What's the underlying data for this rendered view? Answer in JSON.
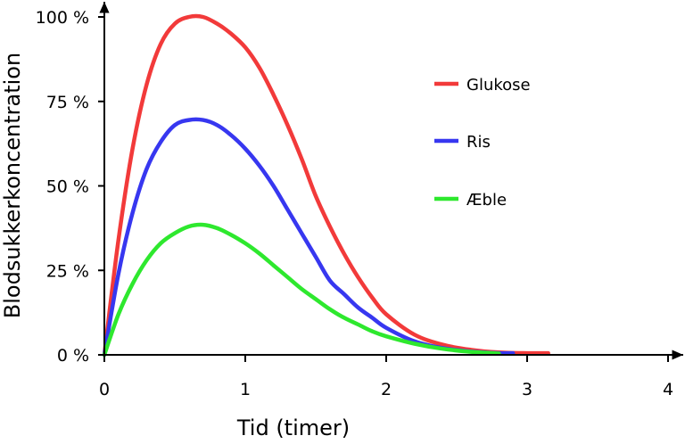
{
  "chart_data": {
    "type": "line",
    "xlabel": "Tid (timer)",
    "ylabel": "Blodsukkerkoncentration",
    "xlim": [
      0,
      4
    ],
    "ylim": [
      0,
      100
    ],
    "x_ticks": [
      "0",
      "1",
      "2",
      "3",
      "4"
    ],
    "y_ticks": [
      "0 %",
      "25 %",
      "50 %",
      "75 %",
      "100 %"
    ],
    "legend_position": "top-right",
    "series": [
      {
        "name": "Glukose",
        "color": "#f23a3a",
        "x": [
          0,
          0.1,
          0.2,
          0.3,
          0.4,
          0.5,
          0.6,
          0.7,
          0.8,
          0.9,
          1.0,
          1.1,
          1.2,
          1.3,
          1.4,
          1.5,
          1.6,
          1.7,
          1.8,
          1.9,
          2.0,
          2.2,
          2.4,
          2.6,
          2.8,
          3.0,
          3.15
        ],
        "values": [
          0,
          34,
          61,
          80,
          92,
          98,
          100,
          100,
          98,
          95,
          91,
          85,
          77,
          68,
          58,
          47,
          38,
          30,
          23,
          17,
          12,
          6,
          3,
          1.5,
          0.7,
          0.5,
          0.5
        ]
      },
      {
        "name": "Ris",
        "color": "#3737f0",
        "x": [
          0,
          0.1,
          0.2,
          0.3,
          0.4,
          0.5,
          0.6,
          0.7,
          0.8,
          0.9,
          1.0,
          1.1,
          1.2,
          1.3,
          1.4,
          1.5,
          1.6,
          1.7,
          1.8,
          1.9,
          2.0,
          2.2,
          2.4,
          2.6,
          2.8,
          2.9
        ],
        "values": [
          0,
          24,
          42,
          55,
          63,
          68,
          69.5,
          69.5,
          68,
          65,
          61,
          56,
          50,
          43,
          36,
          29,
          22,
          18,
          14,
          11,
          8,
          4,
          2,
          1,
          0.5,
          0.5
        ]
      },
      {
        "name": "Æble",
        "color": "#2ee82e",
        "x": [
          0,
          0.1,
          0.2,
          0.3,
          0.4,
          0.5,
          0.6,
          0.7,
          0.8,
          0.9,
          1.0,
          1.1,
          1.2,
          1.3,
          1.4,
          1.5,
          1.6,
          1.7,
          1.8,
          1.9,
          2.0,
          2.2,
          2.4,
          2.6,
          2.8
        ],
        "values": [
          0,
          12,
          21,
          28,
          33,
          36,
          38,
          38.5,
          37.5,
          35.5,
          33,
          30,
          26.5,
          23,
          19.5,
          16.5,
          13.5,
          11,
          9,
          7,
          5.5,
          3.3,
          1.8,
          0.9,
          0.4
        ]
      }
    ]
  }
}
